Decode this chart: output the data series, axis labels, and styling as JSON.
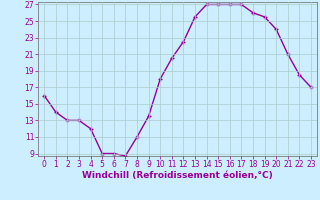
{
  "x": [
    0,
    1,
    2,
    3,
    4,
    5,
    6,
    7,
    8,
    9,
    10,
    11,
    12,
    13,
    14,
    15,
    16,
    17,
    18,
    19,
    20,
    21,
    22,
    23
  ],
  "y": [
    16,
    14,
    13,
    13,
    12,
    9,
    9,
    8.7,
    11,
    13.5,
    18,
    20.5,
    22.5,
    25.5,
    27,
    27,
    27,
    27,
    26,
    25.5,
    24,
    21,
    18.5,
    17
  ],
  "line_color": "#990099",
  "marker": "+",
  "marker_size": 3.5,
  "bg_color": "#cceeff",
  "grid_color": "#aacccc",
  "xlabel": "Windchill (Refroidissement éolien,°C)",
  "xlabel_color": "#990099",
  "tick_color": "#990099",
  "axis_color": "#666666",
  "ylim": [
    9,
    27
  ],
  "xlim": [
    -0.5,
    23.5
  ],
  "yticks": [
    9,
    11,
    13,
    15,
    17,
    19,
    21,
    23,
    25,
    27
  ],
  "xticks": [
    0,
    1,
    2,
    3,
    4,
    5,
    6,
    7,
    8,
    9,
    10,
    11,
    12,
    13,
    14,
    15,
    16,
    17,
    18,
    19,
    20,
    21,
    22,
    23
  ],
  "tick_fontsize": 5.5,
  "xlabel_fontsize": 6.5,
  "linewidth": 1.0,
  "markeredgewidth": 1.0
}
